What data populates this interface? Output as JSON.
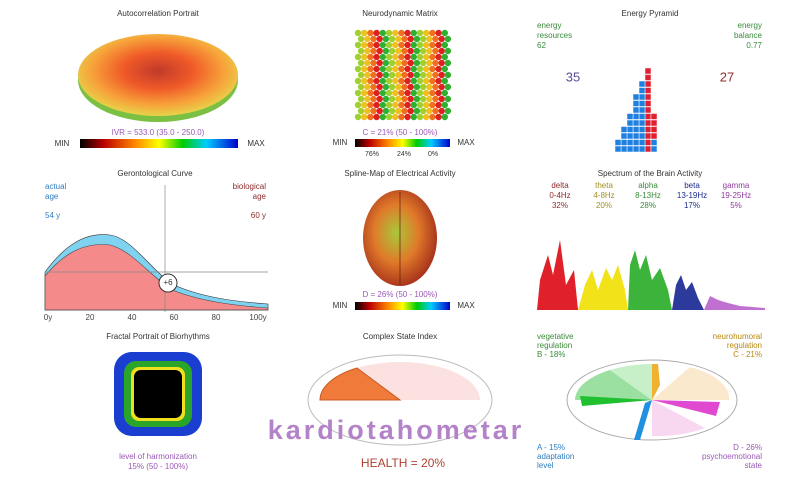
{
  "autocorrelation": {
    "title": "Autocorrelation Portrait",
    "caption": "IVR = 533.0 (35.0 - 250.0)",
    "min": "MIN",
    "max": "MAX"
  },
  "neurodynamic": {
    "title": "Neurodynamic Matrix",
    "caption": "C = 21% (50 - 100%)",
    "min": "MIN",
    "max": "MAX",
    "scale_labels": [
      "76%",
      "24%",
      "0%"
    ]
  },
  "energy": {
    "title": "Energy Pyramid",
    "left_label": [
      "energy",
      "resources"
    ],
    "left_value": "62",
    "right_label": [
      "energy",
      "balance"
    ],
    "right_value": "0.77",
    "left_count": "35",
    "right_count": "27"
  },
  "gerontological": {
    "title": "Gerontological Curve",
    "actual_label": [
      "actual",
      "age"
    ],
    "actual_value": "54 y",
    "biological_label": [
      "biological",
      "age"
    ],
    "biological_value": "60 y",
    "difference": "+6",
    "x_labels": [
      "0y",
      "20",
      "40",
      "60",
      "80",
      "100y"
    ]
  },
  "spline": {
    "title": "Spline-Map of Electrical Activity",
    "caption": "D = 26% (50 - 100%)",
    "min": "MIN",
    "max": "MAX"
  },
  "spectrum": {
    "title": "Spectrum of the Brain Activity",
    "bands": [
      {
        "name": "delta",
        "range": "0-4Hz",
        "share": "32%"
      },
      {
        "name": "theta",
        "range": "4-8Hz",
        "share": "20%"
      },
      {
        "name": "alpha",
        "range": "8-13Hz",
        "share": "28%"
      },
      {
        "name": "beta",
        "range": "13-19Hz",
        "share": "17%"
      },
      {
        "name": "gamma",
        "range": "19-25Hz",
        "share": "5%"
      }
    ]
  },
  "fractal": {
    "title": "Fractal Portrait of Biorhythms",
    "caption": [
      "level of harmonization",
      "15% (50 - 100%)"
    ]
  },
  "complex": {
    "title": "Complex State Index",
    "caption": "HEALTH = 20%"
  },
  "regulation": {
    "b_label": [
      "vegetative",
      "regulation",
      "B - 18%"
    ],
    "c_label": [
      "neurohumoral",
      "regulation",
      "C - 21%"
    ],
    "a_label": [
      "A - 15%",
      "adaptation",
      "level"
    ],
    "d_label": [
      "D - 26%",
      "psychoemotional",
      "state"
    ]
  },
  "watermark": "kardiotahometar"
}
